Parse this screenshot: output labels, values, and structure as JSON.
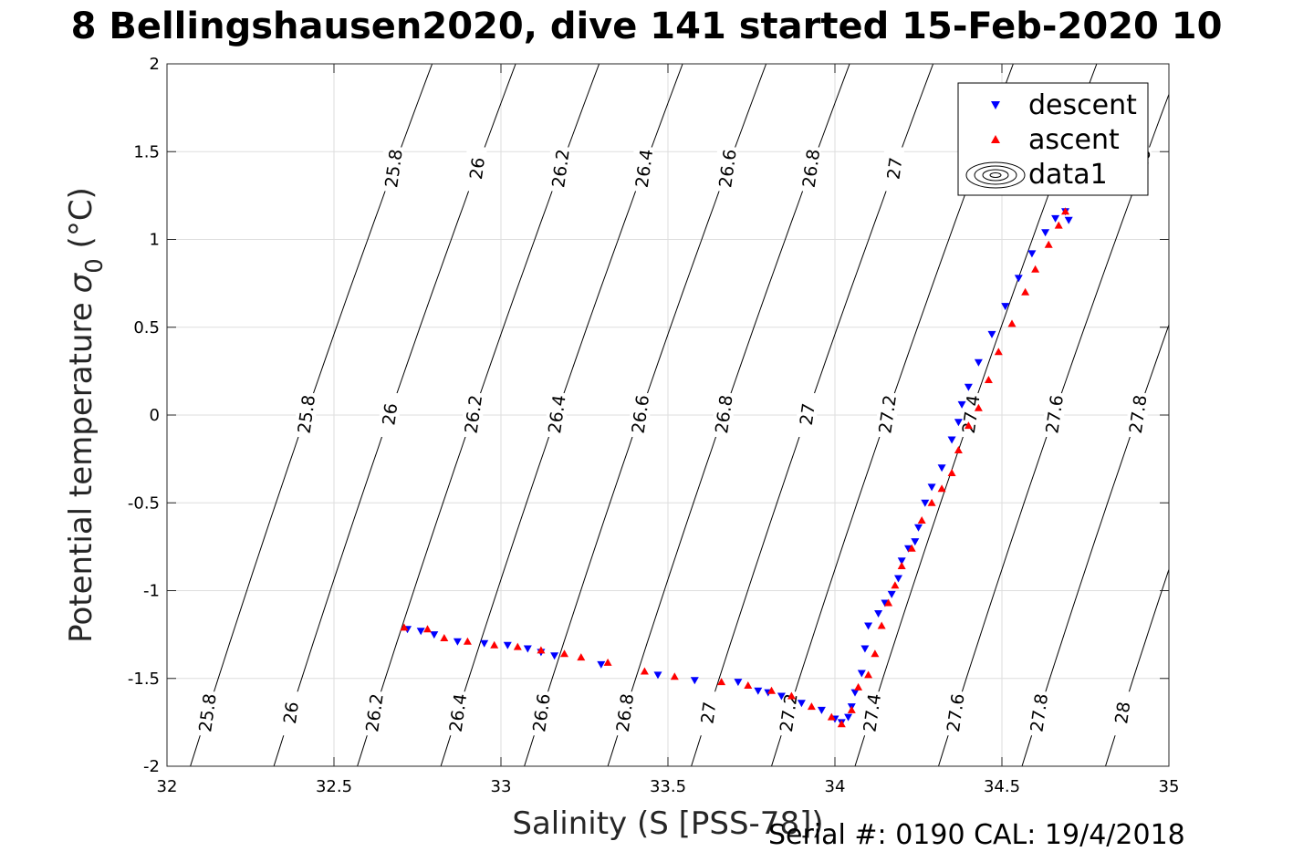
{
  "title": "8 Bellingshausen2020, dive 141 started 15-Feb-2020 10",
  "footer": "Serial #: 0190  CAL: 19/4/2018",
  "chart_data": {
    "type": "scatter",
    "title": "8 Bellingshausen2020, dive 141 started 15-Feb-2020 10",
    "xlabel": "Salinity (S [PSS-78])",
    "ylabel_text": "Potential temperature",
    "ylabel_symbol": "σ",
    "ylabel_sub": "0",
    "ylabel_unit": " (°C)",
    "xlim": [
      32,
      35
    ],
    "ylim": [
      -2,
      2
    ],
    "xticks": [
      "32",
      "32.5",
      "33",
      "33.5",
      "34",
      "34.5",
      "35"
    ],
    "yticks": [
      "-2",
      "-1.5",
      "-1",
      "-0.5",
      "0",
      "0.5",
      "1",
      "1.5",
      "2"
    ],
    "grid": true,
    "legend_position": "top-right",
    "legend": [
      "descent",
      "ascent",
      "data1"
    ],
    "colors": {
      "descent": "#0000ff",
      "ascent": "#ff0000",
      "contour": "#000000",
      "grid": "#dedede"
    },
    "contours": {
      "levels": [
        "25.8",
        "26",
        "26.2",
        "26.4",
        "26.6",
        "26.8",
        "27",
        "27.2",
        "27.4",
        "27.6",
        "27.8",
        "28"
      ],
      "level_values": [
        25.8,
        26.0,
        26.2,
        26.4,
        26.6,
        26.8,
        27.0,
        27.2,
        27.4,
        27.6,
        27.8,
        28.0
      ],
      "salinity_at_minus2": [
        32.07,
        32.32,
        32.57,
        32.82,
        33.07,
        33.32,
        33.57,
        33.81,
        34.06,
        34.31,
        34.56,
        34.81
      ],
      "salinity_per_degC": 0.165,
      "label_temps": [
        -1.7,
        0.0,
        1.4
      ]
    },
    "series": [
      {
        "name": "descent",
        "marker": "triangle-down",
        "points": [
          [
            32.72,
            -1.22
          ],
          [
            32.76,
            -1.23
          ],
          [
            32.8,
            -1.25
          ],
          [
            32.87,
            -1.29
          ],
          [
            32.95,
            -1.3
          ],
          [
            33.02,
            -1.31
          ],
          [
            33.08,
            -1.33
          ],
          [
            33.12,
            -1.35
          ],
          [
            33.16,
            -1.37
          ],
          [
            33.3,
            -1.42
          ],
          [
            33.47,
            -1.48
          ],
          [
            33.58,
            -1.51
          ],
          [
            33.71,
            -1.52
          ],
          [
            33.77,
            -1.57
          ],
          [
            33.8,
            -1.58
          ],
          [
            33.84,
            -1.6
          ],
          [
            33.9,
            -1.64
          ],
          [
            33.96,
            -1.68
          ],
          [
            34.0,
            -1.73
          ],
          [
            34.02,
            -1.75
          ],
          [
            34.04,
            -1.72
          ],
          [
            34.05,
            -1.66
          ],
          [
            34.06,
            -1.58
          ],
          [
            34.08,
            -1.47
          ],
          [
            34.09,
            -1.33
          ],
          [
            34.1,
            -1.2
          ],
          [
            34.13,
            -1.13
          ],
          [
            34.15,
            -1.07
          ],
          [
            34.17,
            -1.02
          ],
          [
            34.19,
            -0.93
          ],
          [
            34.2,
            -0.83
          ],
          [
            34.22,
            -0.76
          ],
          [
            34.24,
            -0.72
          ],
          [
            34.25,
            -0.64
          ],
          [
            34.27,
            -0.5
          ],
          [
            34.29,
            -0.41
          ],
          [
            34.32,
            -0.3
          ],
          [
            34.35,
            -0.14
          ],
          [
            34.37,
            -0.04
          ],
          [
            34.38,
            0.06
          ],
          [
            34.4,
            0.16
          ],
          [
            34.43,
            0.3
          ],
          [
            34.47,
            0.46
          ],
          [
            34.51,
            0.62
          ],
          [
            34.55,
            0.78
          ],
          [
            34.59,
            0.92
          ],
          [
            34.63,
            1.04
          ],
          [
            34.66,
            1.12
          ],
          [
            34.69,
            1.16
          ],
          [
            34.7,
            1.11
          ]
        ]
      },
      {
        "name": "ascent",
        "marker": "triangle-up",
        "points": [
          [
            32.71,
            -1.21
          ],
          [
            32.78,
            -1.22
          ],
          [
            32.83,
            -1.27
          ],
          [
            32.9,
            -1.29
          ],
          [
            32.98,
            -1.31
          ],
          [
            33.05,
            -1.32
          ],
          [
            33.12,
            -1.34
          ],
          [
            33.19,
            -1.36
          ],
          [
            33.24,
            -1.38
          ],
          [
            33.32,
            -1.41
          ],
          [
            33.43,
            -1.46
          ],
          [
            33.52,
            -1.49
          ],
          [
            33.66,
            -1.52
          ],
          [
            33.74,
            -1.54
          ],
          [
            33.81,
            -1.57
          ],
          [
            33.87,
            -1.6
          ],
          [
            33.93,
            -1.66
          ],
          [
            33.99,
            -1.72
          ],
          [
            34.02,
            -1.76
          ],
          [
            34.05,
            -1.68
          ],
          [
            34.07,
            -1.55
          ],
          [
            34.1,
            -1.48
          ],
          [
            34.12,
            -1.36
          ],
          [
            34.14,
            -1.2
          ],
          [
            34.16,
            -1.07
          ],
          [
            34.18,
            -0.97
          ],
          [
            34.2,
            -0.86
          ],
          [
            34.23,
            -0.76
          ],
          [
            34.26,
            -0.6
          ],
          [
            34.29,
            -0.5
          ],
          [
            34.32,
            -0.42
          ],
          [
            34.35,
            -0.33
          ],
          [
            34.37,
            -0.2
          ],
          [
            34.4,
            -0.06
          ],
          [
            34.43,
            0.04
          ],
          [
            34.46,
            0.2
          ],
          [
            34.49,
            0.36
          ],
          [
            34.53,
            0.52
          ],
          [
            34.57,
            0.7
          ],
          [
            34.6,
            0.83
          ],
          [
            34.64,
            0.97
          ],
          [
            34.67,
            1.08
          ],
          [
            34.69,
            1.16
          ]
        ]
      }
    ]
  }
}
